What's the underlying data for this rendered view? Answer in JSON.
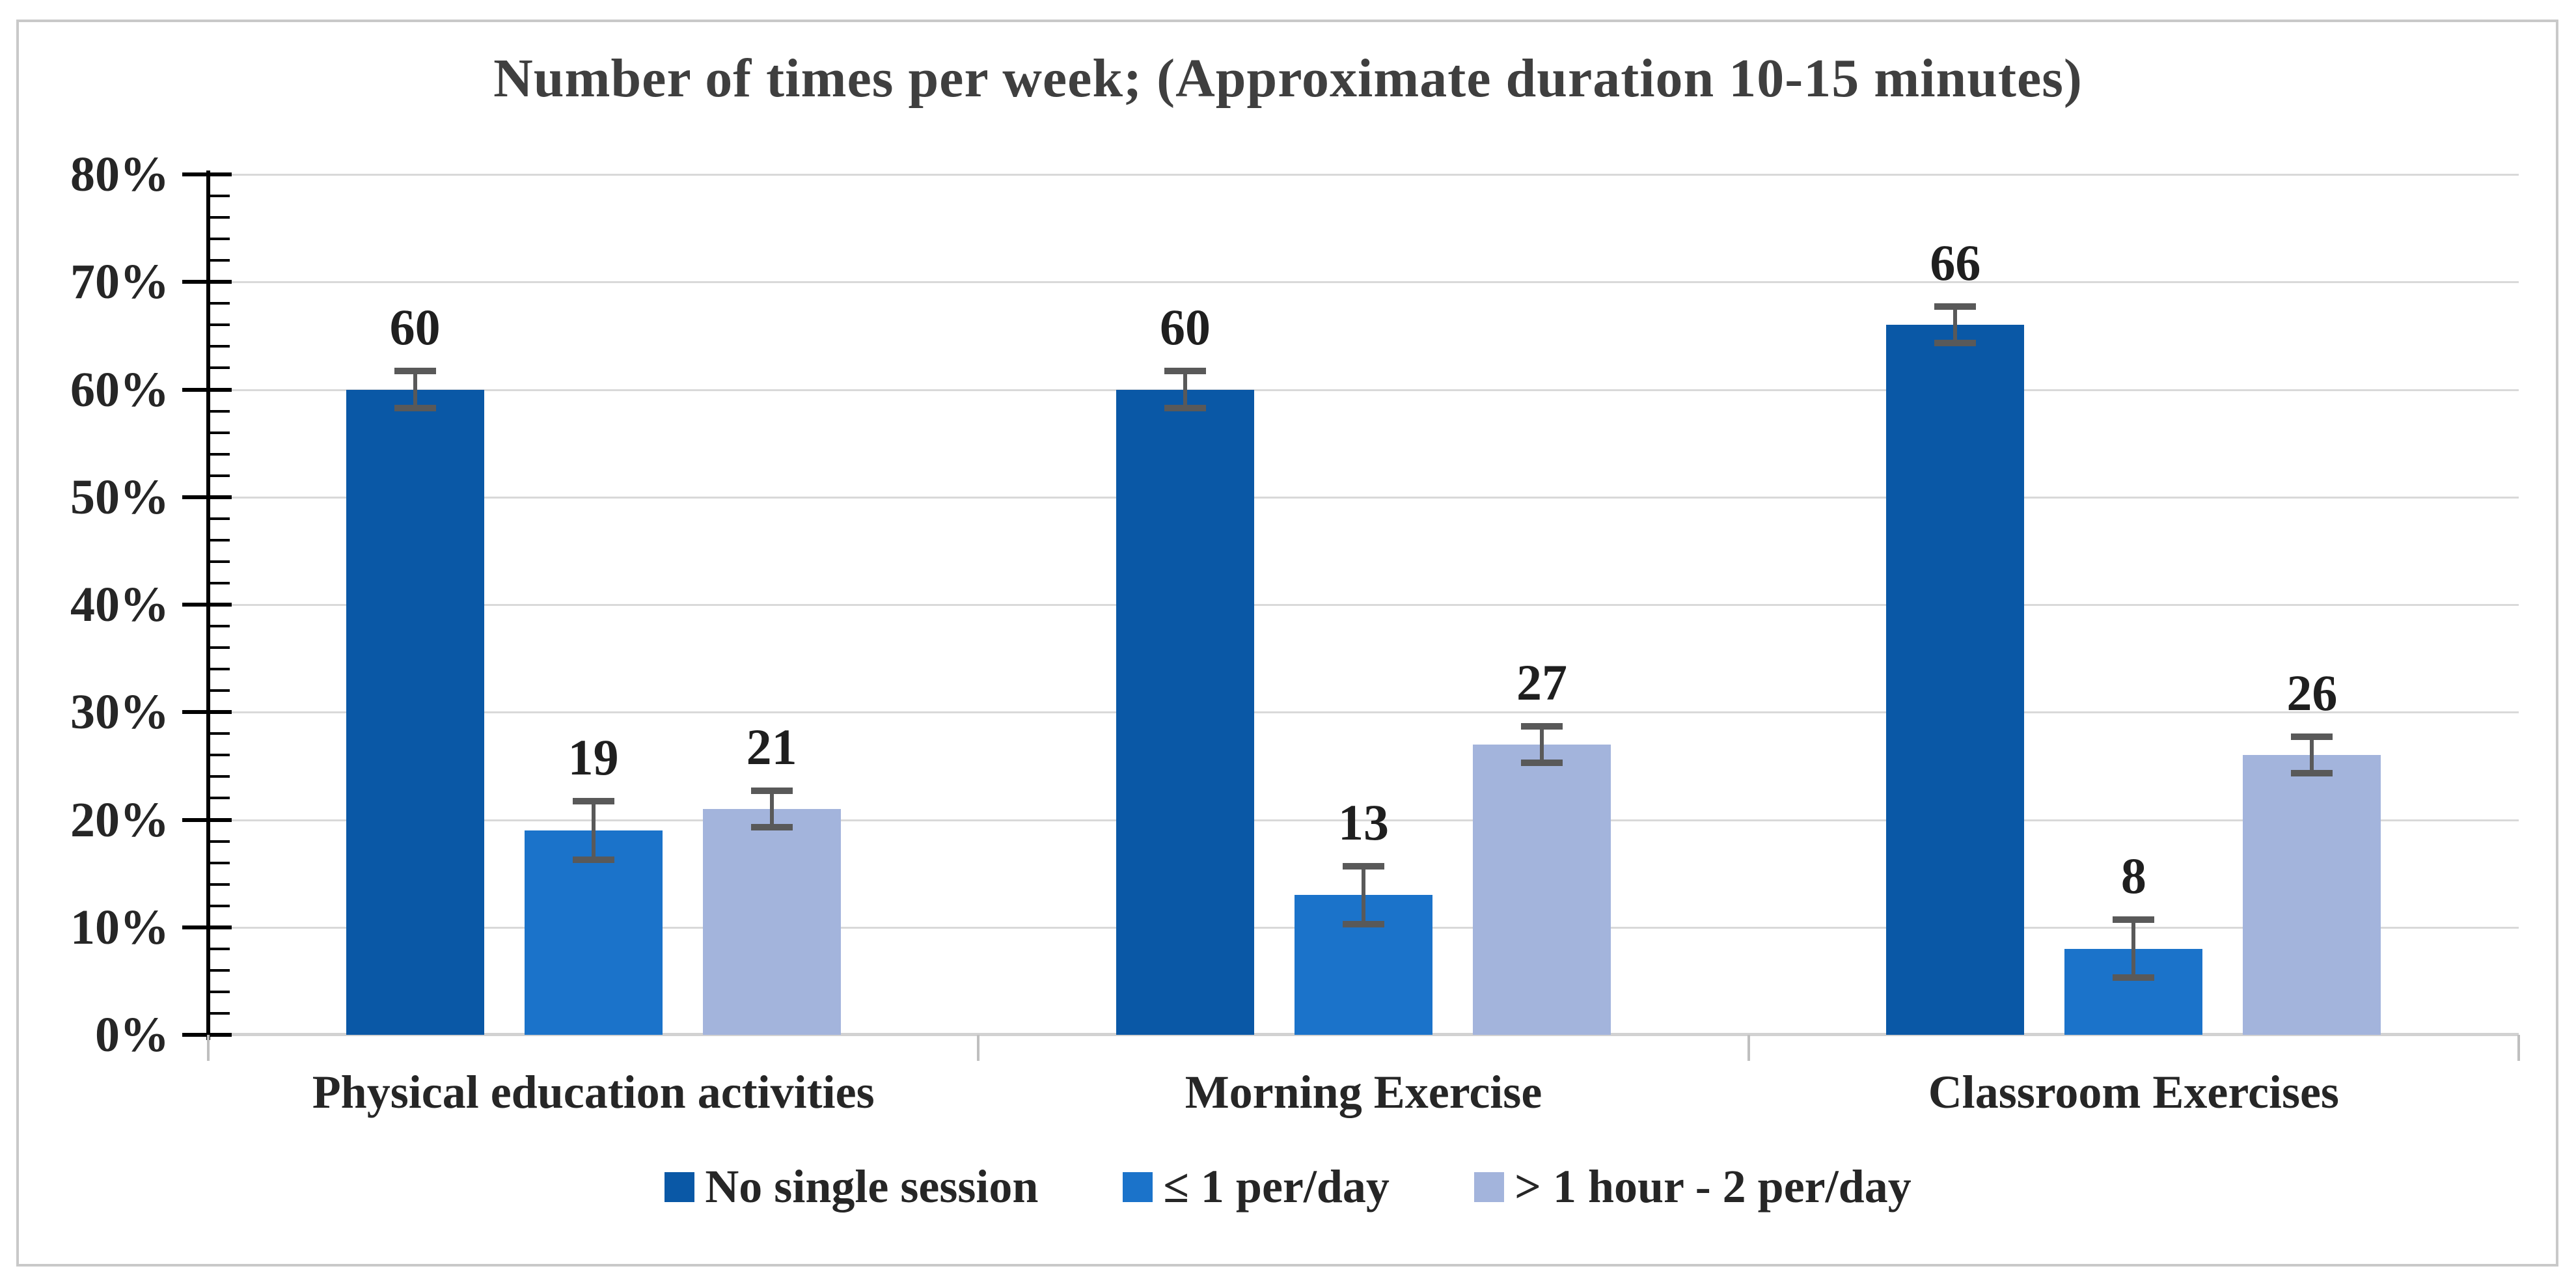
{
  "title": "Number of times per week; (Approximate duration 10-15 minutes)",
  "chart_data": {
    "type": "bar",
    "title": "Number of times per week; (Approximate duration 10-15 minutes)",
    "categories": [
      "Physical education activities",
      "Morning Exercise",
      "Classroom Exercises"
    ],
    "series": [
      {
        "name": "No single session",
        "color": "#0A58A6",
        "values": [
          60,
          60,
          66
        ],
        "errors": [
          2,
          2,
          2
        ]
      },
      {
        "name": "≤ 1 per/day",
        "color": "#1B73CA",
        "values": [
          19,
          13,
          8
        ],
        "errors": [
          3,
          3,
          3
        ]
      },
      {
        "name": "> 1 hour - 2 per/day",
        "color": "#A3B4DC",
        "values": [
          21,
          27,
          26
        ],
        "errors": [
          2,
          2,
          2
        ]
      }
    ],
    "ylim": [
      0,
      80
    ],
    "ytick_step": 10,
    "yminor_step": 2,
    "ytick_labels": [
      "0%",
      "10%",
      "20%",
      "30%",
      "40%",
      "50%",
      "60%",
      "70%",
      "80%"
    ],
    "grid": true,
    "legend_position": "bottom",
    "error_bar_color": "#595959",
    "gridline_color": "#D9D9D9"
  }
}
